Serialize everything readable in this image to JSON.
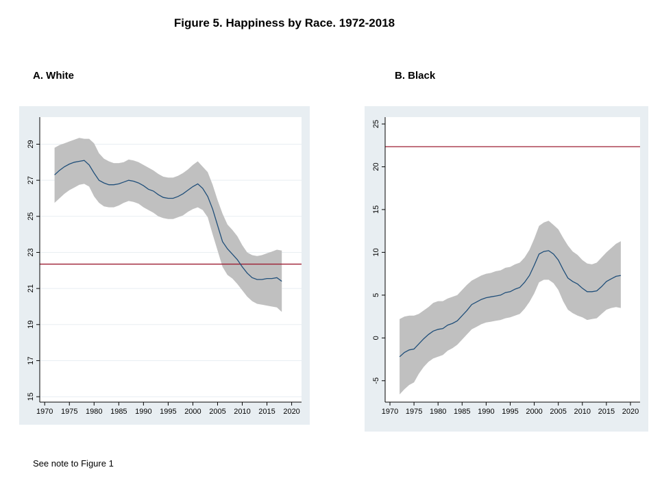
{
  "figure": {
    "title": "Figure 5. Happiness by Race. 1972-2018",
    "note": "See note to Figure 1"
  },
  "colors": {
    "frame_bg": "#e8eef2",
    "plot_bg": "#ffffff",
    "band": "#c0c0c0",
    "line": "#1f4e79",
    "reference": "#9b1b30",
    "grid": "#e8eef2"
  },
  "chart_data": [
    {
      "type": "line",
      "panel_title": "A.  White",
      "x": [
        1972,
        1973,
        1974,
        1975,
        1976,
        1977,
        1978,
        1979,
        1980,
        1981,
        1982,
        1983,
        1984,
        1985,
        1986,
        1987,
        1988,
        1989,
        1990,
        1991,
        1992,
        1993,
        1994,
        1995,
        1996,
        1997,
        1998,
        1999,
        2000,
        2001,
        2002,
        2003,
        2004,
        2005,
        2006,
        2007,
        2008,
        2009,
        2010,
        2011,
        2012,
        2013,
        2014,
        2015,
        2016,
        2017,
        2018
      ],
      "series": [
        {
          "role": "estimate",
          "values": [
            27.3,
            27.55,
            27.75,
            27.9,
            28.0,
            28.05,
            28.1,
            27.85,
            27.4,
            27.0,
            26.85,
            26.75,
            26.75,
            26.8,
            26.9,
            27.0,
            26.95,
            26.85,
            26.7,
            26.5,
            26.4,
            26.2,
            26.05,
            26.0,
            26.0,
            26.1,
            26.25,
            26.45,
            26.65,
            26.8,
            26.55,
            26.1,
            25.4,
            24.5,
            23.6,
            23.2,
            22.9,
            22.6,
            22.2,
            21.85,
            21.6,
            21.5,
            21.5,
            21.55,
            21.55,
            21.6,
            21.4
          ]
        },
        {
          "role": "upper",
          "values": [
            28.8,
            28.95,
            29.05,
            29.15,
            29.25,
            29.35,
            29.3,
            29.3,
            29.05,
            28.5,
            28.2,
            28.05,
            27.95,
            27.95,
            28.0,
            28.15,
            28.1,
            28.0,
            27.85,
            27.7,
            27.55,
            27.35,
            27.2,
            27.15,
            27.15,
            27.25,
            27.4,
            27.6,
            27.85,
            28.05,
            27.75,
            27.45,
            26.75,
            25.9,
            25.15,
            24.55,
            24.25,
            23.9,
            23.4,
            23.0,
            22.85,
            22.8,
            22.85,
            22.95,
            23.05,
            23.15,
            23.1
          ]
        },
        {
          "role": "lower",
          "values": [
            25.75,
            26.0,
            26.25,
            26.45,
            26.6,
            26.75,
            26.8,
            26.65,
            26.1,
            25.75,
            25.55,
            25.5,
            25.5,
            25.6,
            25.75,
            25.85,
            25.8,
            25.7,
            25.5,
            25.35,
            25.2,
            25.0,
            24.9,
            24.85,
            24.85,
            24.95,
            25.05,
            25.25,
            25.4,
            25.5,
            25.35,
            24.95,
            24.0,
            23.1,
            22.2,
            21.75,
            21.55,
            21.25,
            20.9,
            20.55,
            20.3,
            20.15,
            20.1,
            20.05,
            20.0,
            19.95,
            19.7
          ]
        }
      ],
      "reference_line": 22.35,
      "xlim": [
        1969,
        2022
      ],
      "ylim": [
        14.7,
        30.5
      ],
      "xticks": [
        1970,
        1975,
        1980,
        1985,
        1990,
        1995,
        2000,
        2005,
        2010,
        2015,
        2020
      ],
      "yticks": [
        15,
        17,
        19,
        21,
        23,
        25,
        27,
        29
      ],
      "xtick_labels": [
        "1970",
        "1975",
        "1980",
        "1985",
        "1990",
        "1995",
        "2000",
        "2005",
        "2010",
        "2015",
        "2020"
      ],
      "ytick_labels": [
        "15",
        "17",
        "19",
        "21",
        "23",
        "25",
        "27",
        "29"
      ],
      "grid": true
    },
    {
      "type": "line",
      "panel_title": "B. Black",
      "x": [
        1972,
        1973,
        1974,
        1975,
        1976,
        1977,
        1978,
        1979,
        1980,
        1981,
        1982,
        1983,
        1984,
        1985,
        1986,
        1987,
        1988,
        1989,
        1990,
        1991,
        1992,
        1993,
        1994,
        1995,
        1996,
        1997,
        1998,
        1999,
        2000,
        2001,
        2002,
        2003,
        2004,
        2005,
        2006,
        2007,
        2008,
        2009,
        2010,
        2011,
        2012,
        2013,
        2014,
        2015,
        2016,
        2017,
        2018
      ],
      "series": [
        {
          "role": "estimate",
          "values": [
            -2.2,
            -1.7,
            -1.4,
            -1.3,
            -0.7,
            -0.1,
            0.4,
            0.8,
            1.0,
            1.1,
            1.5,
            1.7,
            2.0,
            2.6,
            3.2,
            3.9,
            4.2,
            4.5,
            4.7,
            4.8,
            4.9,
            5.0,
            5.3,
            5.4,
            5.7,
            5.9,
            6.5,
            7.3,
            8.5,
            9.8,
            10.1,
            10.2,
            9.8,
            9.1,
            8.0,
            7.0,
            6.6,
            6.3,
            5.8,
            5.4,
            5.4,
            5.5,
            6.0,
            6.6,
            6.9,
            7.2,
            7.3
          ]
        },
        {
          "role": "upper",
          "values": [
            2.2,
            2.5,
            2.6,
            2.6,
            2.8,
            3.2,
            3.6,
            4.1,
            4.3,
            4.3,
            4.6,
            4.8,
            5.0,
            5.6,
            6.2,
            6.7,
            7.0,
            7.3,
            7.5,
            7.6,
            7.8,
            7.9,
            8.2,
            8.3,
            8.6,
            8.8,
            9.4,
            10.3,
            11.6,
            13.1,
            13.5,
            13.7,
            13.2,
            12.7,
            11.7,
            10.8,
            10.1,
            9.7,
            9.1,
            8.7,
            8.6,
            8.8,
            9.4,
            10.0,
            10.5,
            11.0,
            11.3
          ]
        },
        {
          "role": "lower",
          "values": [
            -6.6,
            -6.0,
            -5.5,
            -5.2,
            -4.2,
            -3.4,
            -2.8,
            -2.4,
            -2.2,
            -2.0,
            -1.5,
            -1.2,
            -0.8,
            -0.2,
            0.4,
            1.0,
            1.3,
            1.6,
            1.8,
            1.9,
            2.0,
            2.1,
            2.3,
            2.4,
            2.6,
            2.8,
            3.4,
            4.2,
            5.2,
            6.5,
            6.8,
            6.8,
            6.4,
            5.6,
            4.3,
            3.3,
            2.9,
            2.6,
            2.4,
            2.1,
            2.2,
            2.3,
            2.8,
            3.3,
            3.5,
            3.6,
            3.5
          ]
        }
      ],
      "reference_line": 22.35,
      "xlim": [
        1969,
        2022
      ],
      "ylim": [
        -7.5,
        25.8
      ],
      "xticks": [
        1970,
        1975,
        1980,
        1985,
        1990,
        1995,
        2000,
        2005,
        2010,
        2015,
        2020
      ],
      "yticks": [
        -5,
        0,
        5,
        10,
        15,
        20,
        25
      ],
      "xtick_labels": [
        "1970",
        "1975",
        "1980",
        "1985",
        "1990",
        "1995",
        "2000",
        "2005",
        "2010",
        "2015",
        "2020"
      ],
      "ytick_labels": [
        "-5",
        "0",
        "5",
        "10",
        "15",
        "20",
        "25"
      ],
      "grid": false
    }
  ]
}
